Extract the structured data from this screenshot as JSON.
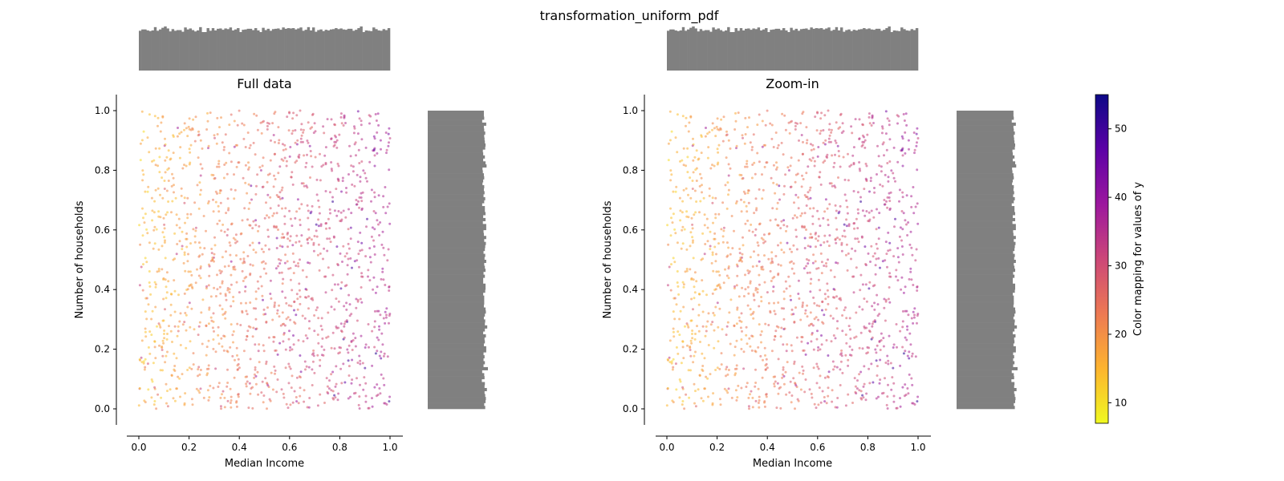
{
  "title": "transformation_uniform_pdf",
  "colorbar": {
    "label": "Color mapping for values of y",
    "ticks": [
      10,
      20,
      30,
      40,
      50
    ],
    "range": [
      7,
      55
    ],
    "colormap": "plasma_r",
    "stops": [
      "#f0f921",
      "#fdb42f",
      "#ed7953",
      "#cc4778",
      "#9c179e",
      "#5c01a6",
      "#0d0887"
    ]
  },
  "histogram_color": "#808080",
  "chart_data": [
    {
      "type": "scatter",
      "title": "Full data",
      "xlabel": "Median Income",
      "ylabel": "Number of households",
      "xlim": [
        -0.05,
        1.05
      ],
      "ylim": [
        -0.05,
        1.05
      ],
      "xticks": [
        "0.0",
        "0.2",
        "0.4",
        "0.6",
        "0.8",
        "1.0"
      ],
      "yticks": [
        "0.0",
        "0.2",
        "0.4",
        "0.6",
        "0.8",
        "1.0"
      ],
      "x_range": [
        0.0,
        1.0
      ],
      "y_range": [
        0.0,
        1.0
      ],
      "grid": false,
      "marginal_histograms": [
        "top",
        "right"
      ],
      "point_count": 1500,
      "distribution": "approximately uniform on [0, 1] x [0, 1]; lower y-values concentrated at small x"
    },
    {
      "type": "scatter",
      "title": "Zoom-in",
      "xlabel": "Median Income",
      "ylabel": "Number of households",
      "xlim": [
        -0.05,
        1.05
      ],
      "ylim": [
        -0.05,
        1.05
      ],
      "xticks": [
        "0.0",
        "0.2",
        "0.4",
        "0.6",
        "0.8",
        "1.0"
      ],
      "yticks": [
        "0.0",
        "0.2",
        "0.4",
        "0.6",
        "0.8",
        "1.0"
      ],
      "x_range": [
        0.0,
        1.0
      ],
      "y_range": [
        0.0,
        1.0
      ],
      "grid": false,
      "marginal_histograms": [
        "top",
        "right"
      ],
      "point_count": 1500,
      "distribution": "approximately uniform on [0, 1] x [0, 1]; lower y-values concentrated at small x"
    }
  ]
}
